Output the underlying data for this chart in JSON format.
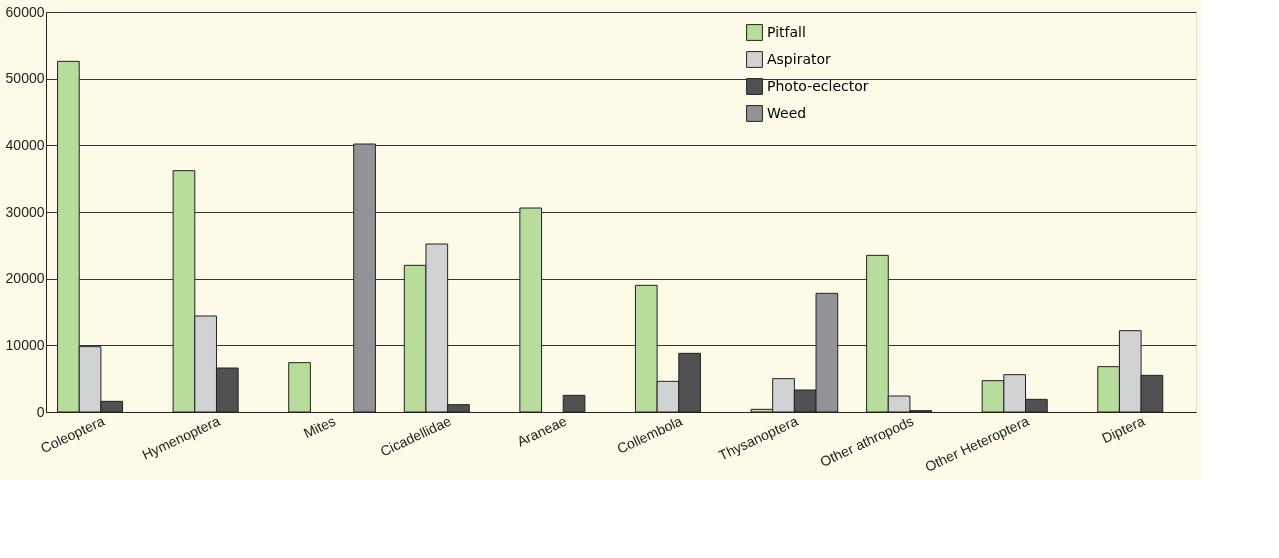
{
  "chart_data": {
    "type": "bar",
    "categories": [
      "Coleoptera",
      "Hymenoptera",
      "Mites",
      "Cicadellidae",
      "Araneae",
      "Collembola",
      "Thysanoptera",
      "Other athropods",
      "Other Heteroptera",
      "Diptera"
    ],
    "series": [
      {
        "name": "Pitfall",
        "color": "#b7dc9b",
        "values": [
          52600,
          36200,
          7400,
          22000,
          30600,
          19000,
          400,
          23500,
          4700,
          6800
        ]
      },
      {
        "name": "Aspirator",
        "color": "#d1d2d4",
        "values": [
          9800,
          14400,
          null,
          25200,
          null,
          4600,
          5000,
          2400,
          5600,
          12200
        ]
      },
      {
        "name": "Photo-eclector",
        "color": "#505153",
        "values": [
          1600,
          6600,
          null,
          1100,
          2500,
          8800,
          3300,
          200,
          1900,
          5500
        ]
      },
      {
        "name": "Weed",
        "color": "#929396",
        "values": [
          null,
          null,
          40200,
          null,
          null,
          null,
          17800,
          null,
          null,
          null
        ]
      }
    ],
    "ylim": [
      0,
      60000
    ],
    "yticks": [
      0,
      10000,
      20000,
      30000,
      40000,
      50000,
      60000
    ],
    "grid": "y",
    "legend": "top"
  }
}
